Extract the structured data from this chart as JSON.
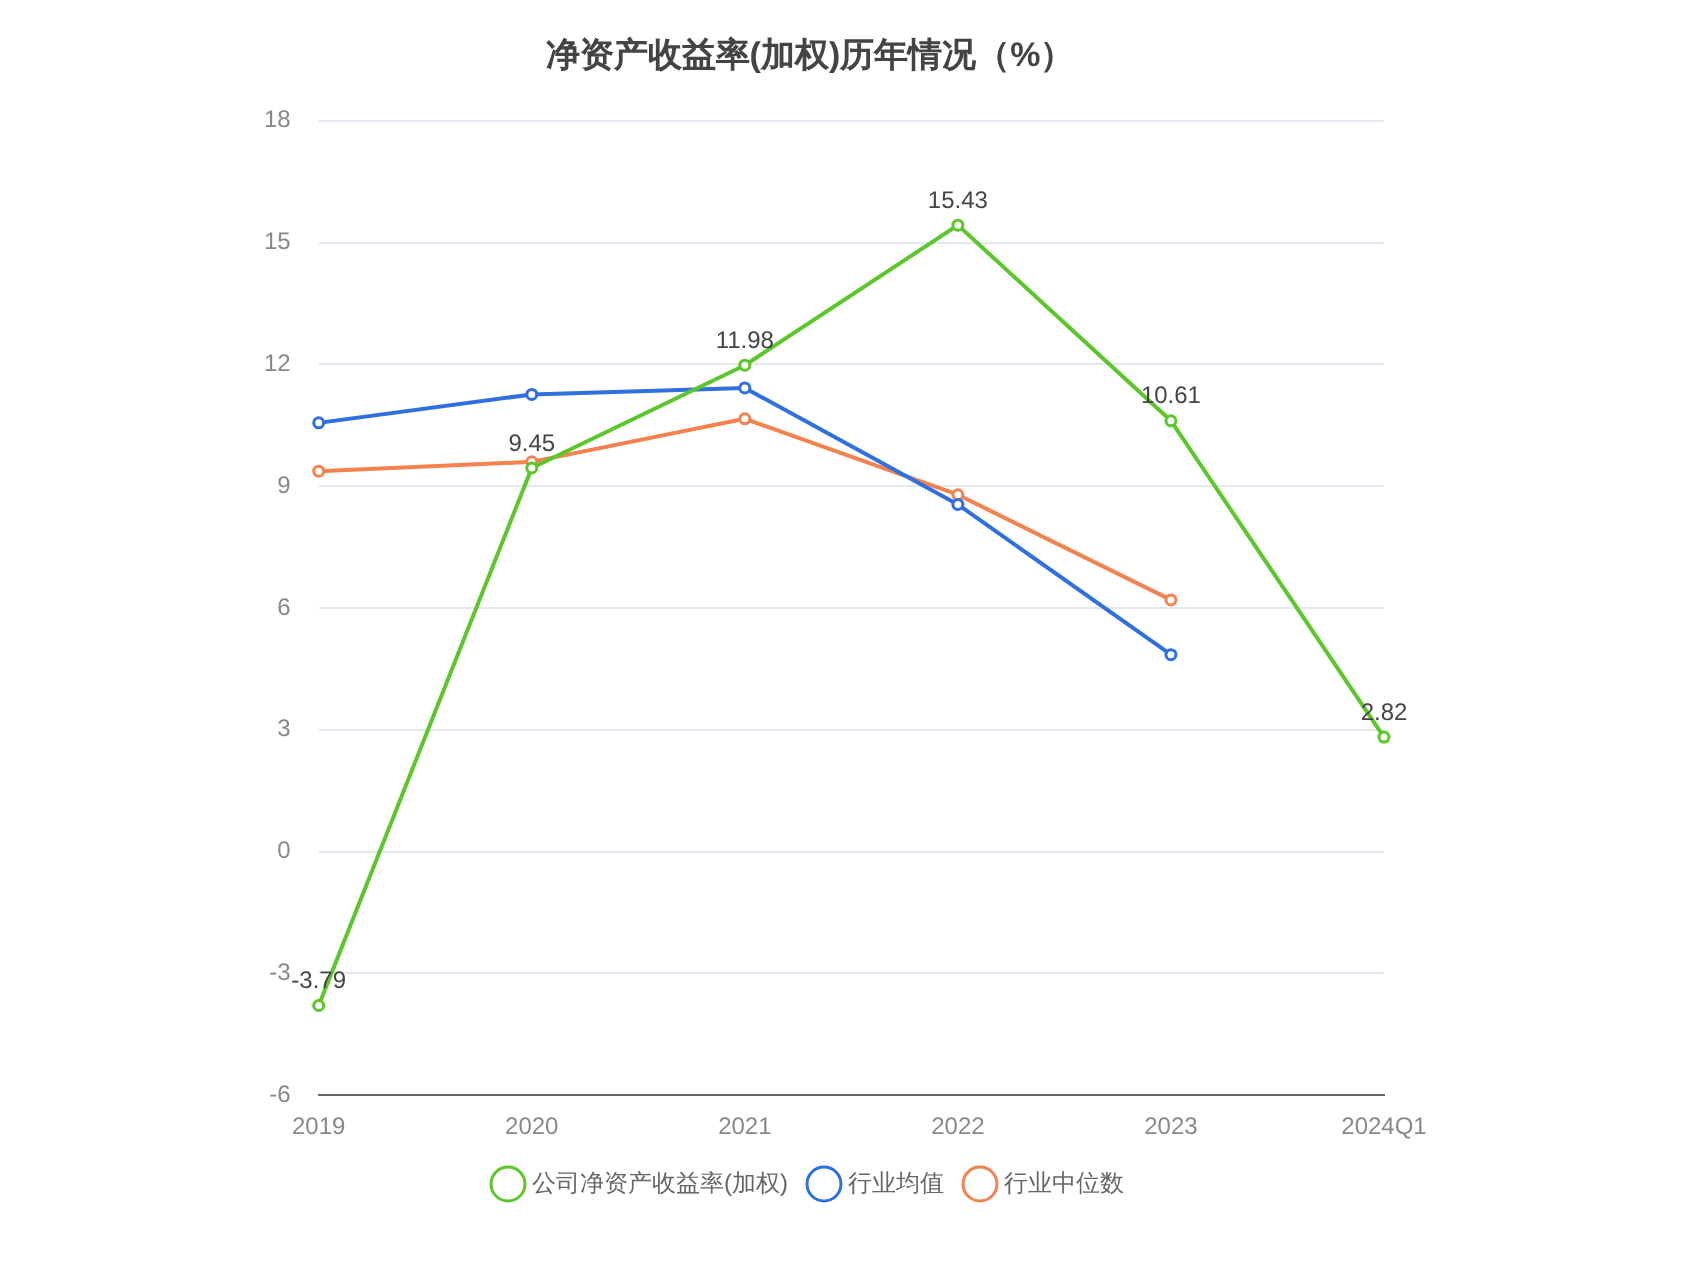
{
  "chart_data": {
    "type": "line",
    "title": "净资产收益率(加权)历年情况（%）",
    "categories": [
      "2019",
      "2020",
      "2021",
      "2022",
      "2023",
      "2024Q1"
    ],
    "series": [
      {
        "name": "公司净资产收益率(加权)",
        "color": "#5cc72a",
        "values": [
          -3.79,
          9.45,
          11.98,
          15.43,
          10.61,
          2.82
        ],
        "value_labels": [
          "-3.79",
          "9.45",
          "11.98",
          "15.43",
          "10.61",
          "2.82"
        ]
      },
      {
        "name": "行业均值",
        "color": "#2f6fe0",
        "values": [
          10.56,
          11.26,
          11.42,
          8.55,
          4.85,
          null
        ]
      },
      {
        "name": "行业中位数",
        "color": "#f4824f",
        "values": [
          9.37,
          9.6,
          10.66,
          8.79,
          6.2,
          null
        ]
      }
    ],
    "ylim": [
      -6,
      18
    ],
    "yticks": [
      -6,
      -3,
      0,
      3,
      6,
      9,
      12,
      15,
      18
    ],
    "grid": "y",
    "legend": "bottom",
    "marker": "circle"
  }
}
